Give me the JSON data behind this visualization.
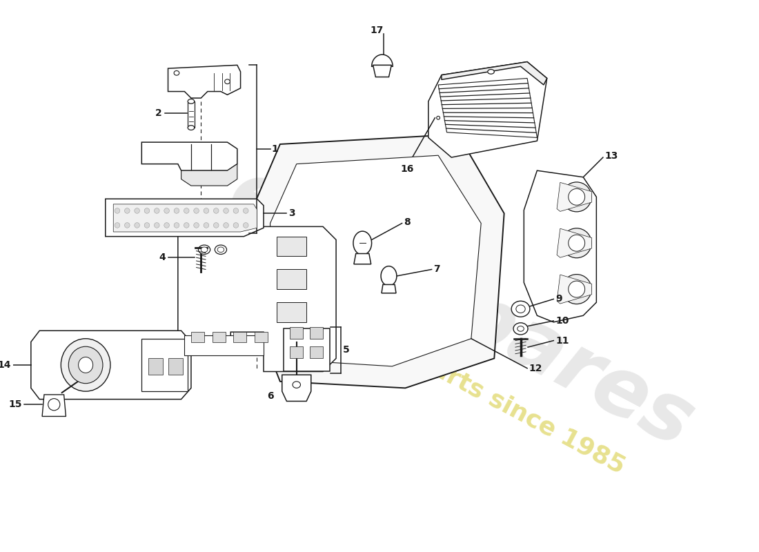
{
  "bg_color": "#ffffff",
  "line_color": "#1a1a1a",
  "watermark_color": "#cccccc",
  "watermark_yellow": "#d4c832",
  "lw": 1.1,
  "label_fontsize": 10
}
